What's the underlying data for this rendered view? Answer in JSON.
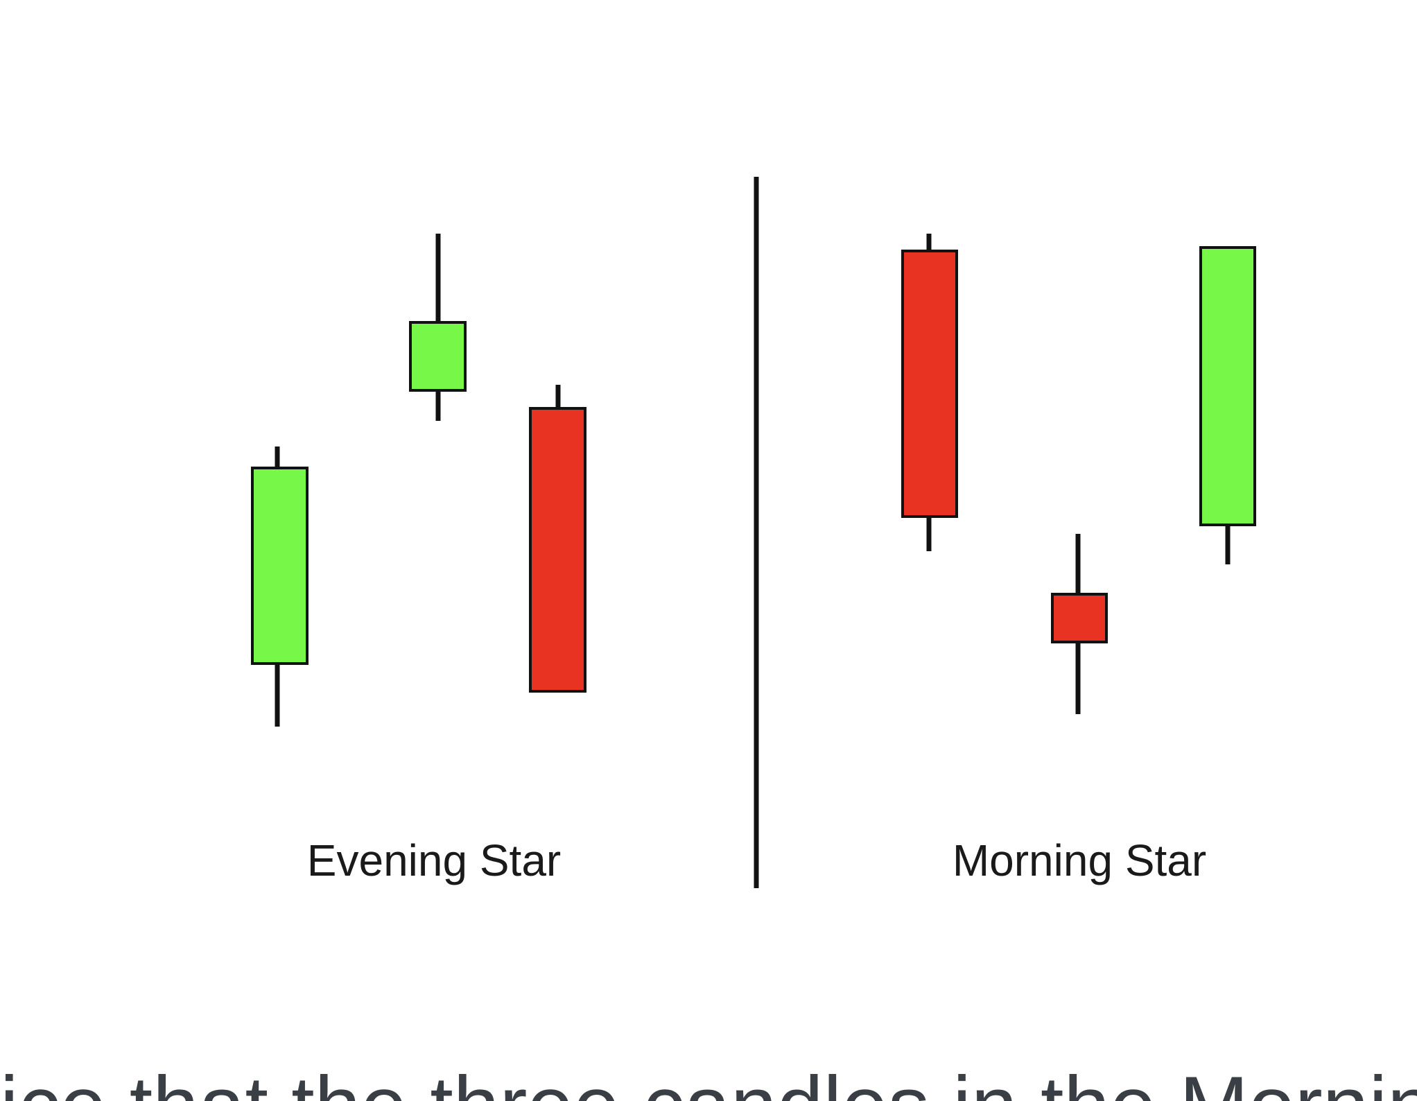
{
  "colors": {
    "bullish": "#77f747",
    "bearish": "#e83323",
    "outline": "#111111",
    "label": "#1a1a1a",
    "caption": "#3a3f45",
    "background": "#ffffff"
  },
  "panels": [
    {
      "id": "evening-star",
      "label": "Evening Star",
      "candles": [
        {
          "direction": "bullish"
        },
        {
          "direction": "bullish"
        },
        {
          "direction": "bearish"
        }
      ]
    },
    {
      "id": "morning-star",
      "label": "Morning Star",
      "candles": [
        {
          "direction": "bearish"
        },
        {
          "direction": "bearish"
        },
        {
          "direction": "bullish"
        }
      ]
    }
  ],
  "caption": {
    "text": "ice that the three candles in the Morning Star is the"
  }
}
